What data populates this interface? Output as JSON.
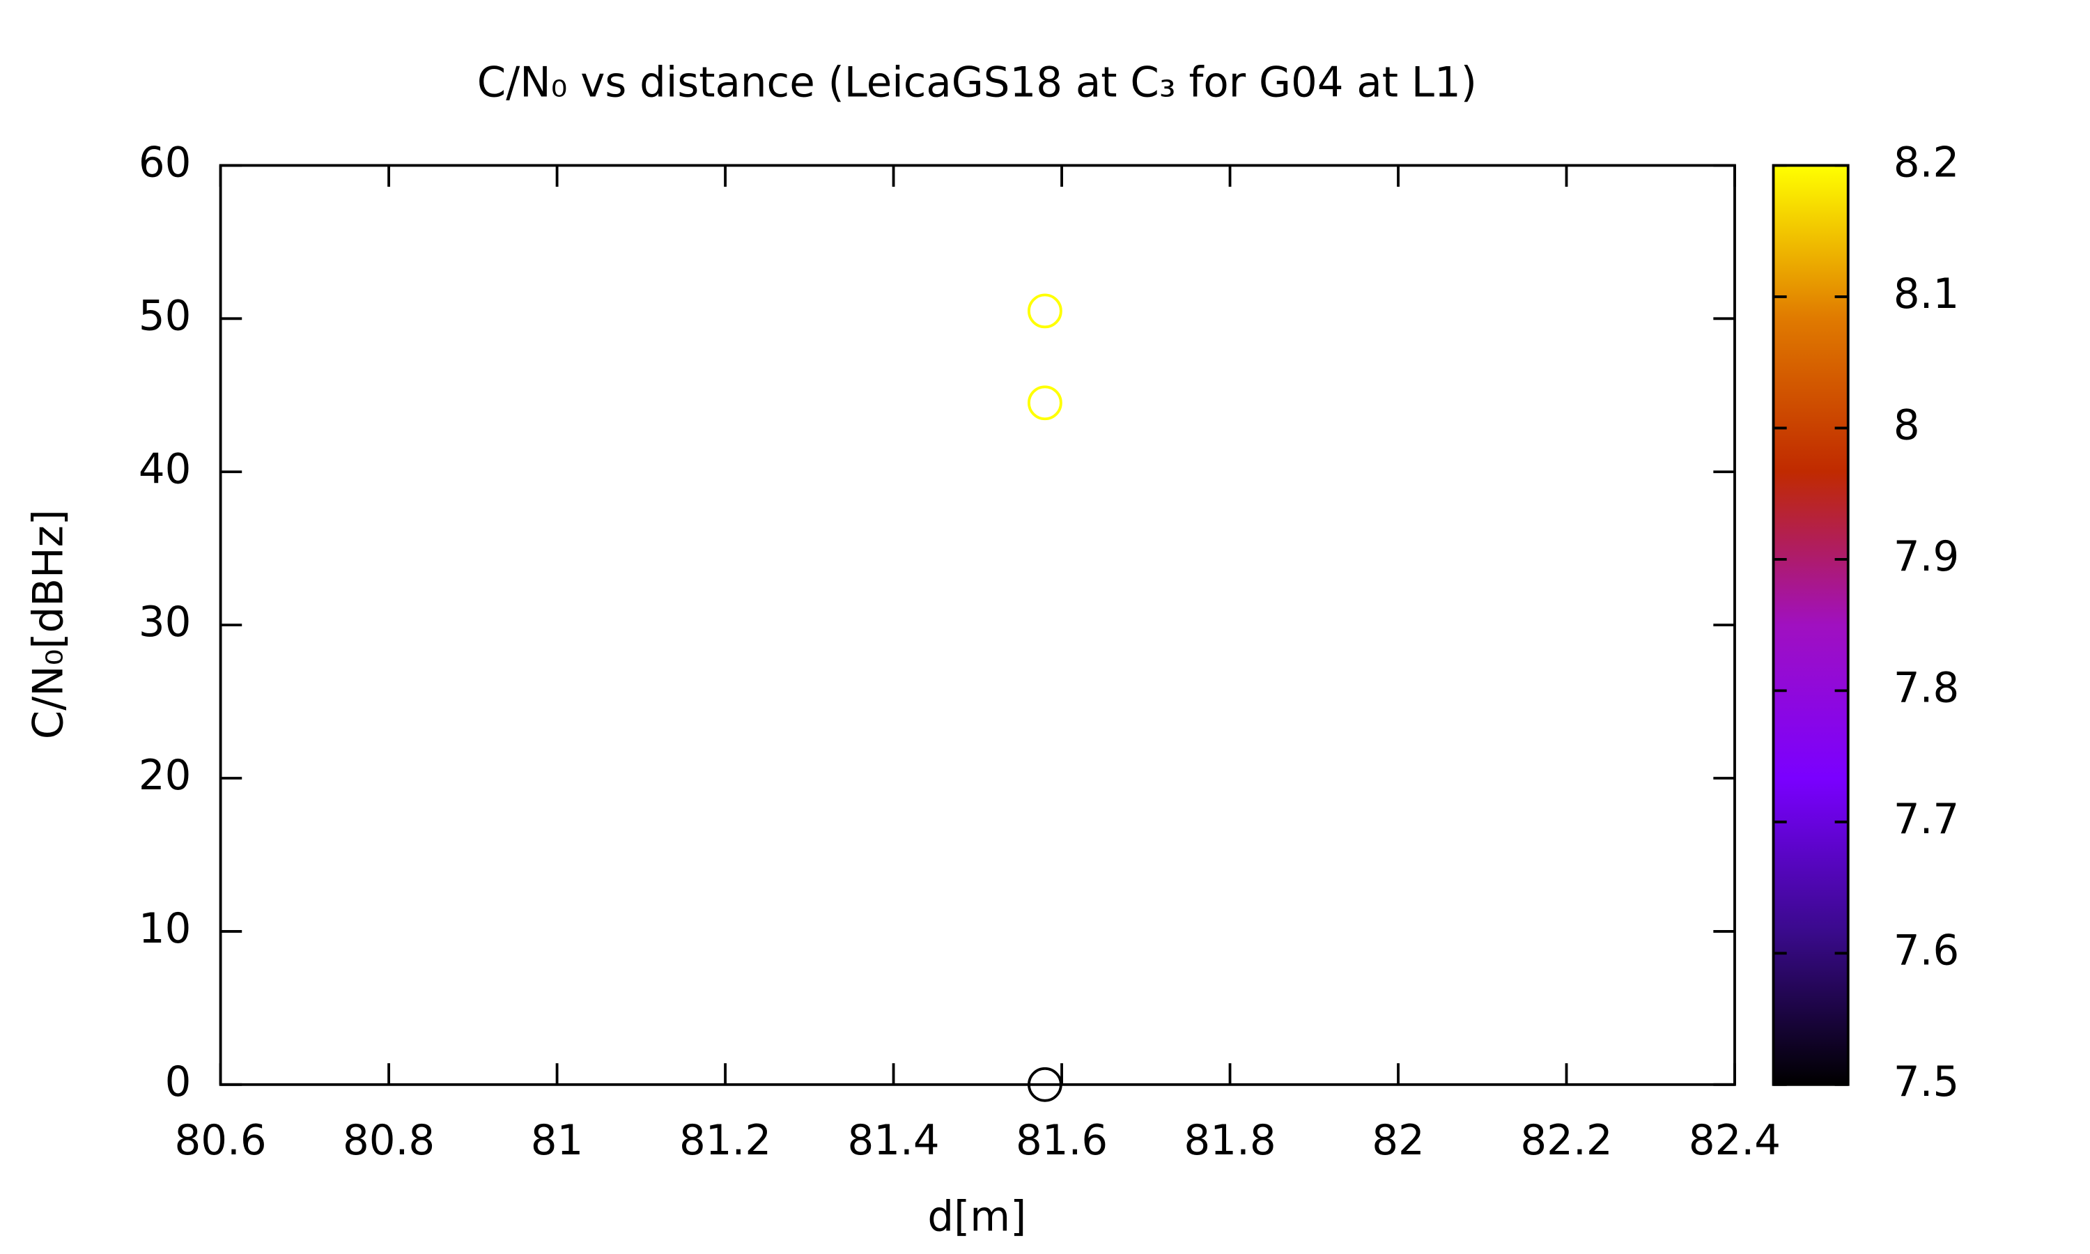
{
  "chart_data": {
    "type": "scatter",
    "title": "C/N₀ vs distance (LeicaGS18 at C₃ for G04 at L1)",
    "xlabel": "d[m]",
    "ylabel": "C/N₀[dBHz]",
    "x": [
      81.58,
      81.58,
      81.58
    ],
    "values": [
      50.5,
      44.5,
      0
    ],
    "color_values": [
      8.2,
      8.2,
      7.5
    ],
    "xlim": [
      80.6,
      82.4
    ],
    "xticks": [
      80.6,
      80.8,
      81,
      81.2,
      81.4,
      81.6,
      81.8,
      82,
      82.2,
      82.4
    ],
    "ylim": [
      0,
      60
    ],
    "yticks": [
      0,
      10,
      20,
      30,
      40,
      50,
      60
    ],
    "clim": [
      7.5,
      8.2
    ],
    "cticks": [
      7.5,
      7.6,
      7.7,
      7.8,
      7.9,
      8,
      8.1,
      8.2
    ],
    "palette": [
      "#000000",
      "#3a0a8c",
      "#7a00ff",
      "#a010c0",
      "#c02a00",
      "#e07a00",
      "#ffff00"
    ],
    "marker": "circle",
    "grid": false
  }
}
